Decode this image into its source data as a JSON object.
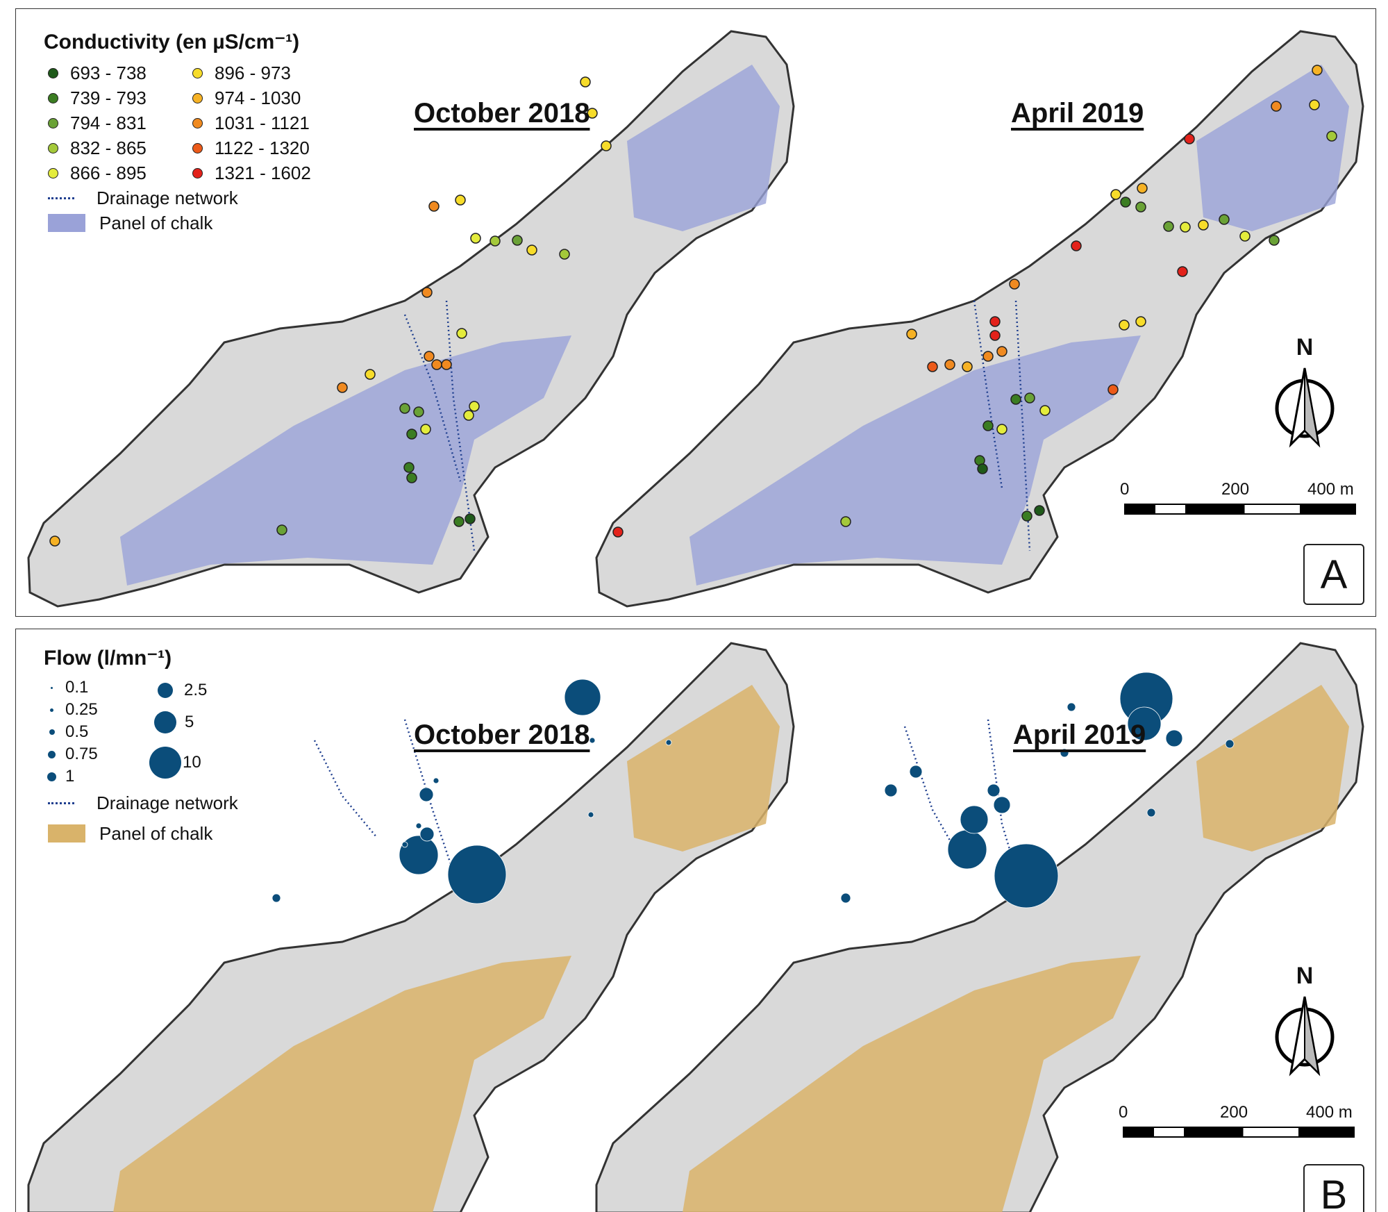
{
  "panel_a": {
    "legend_title": "Conductivity (en µS/cm⁻¹)",
    "classes": [
      {
        "label": "693 - 738",
        "color": "#1f5a1a"
      },
      {
        "label": "739 - 793",
        "color": "#3b7d22"
      },
      {
        "label": "794 - 831",
        "color": "#6aa236"
      },
      {
        "label": "832 - 865",
        "color": "#a4c93a"
      },
      {
        "label": "866 - 895",
        "color": "#e4ec3c"
      },
      {
        "label": "896 - 973",
        "color": "#f7dc2a"
      },
      {
        "label": "974 - 1030",
        "color": "#f6b225"
      },
      {
        "label": "1031 - 1121",
        "color": "#f08a20"
      },
      {
        "label": "1122 - 1320",
        "color": "#ec5a19"
      },
      {
        "label": "1321 - 1602",
        "color": "#e3221b"
      }
    ],
    "drainage_label": "Drainage network",
    "panel_label": "Panel of chalk",
    "panel_color": "#9aa2d8",
    "title_left": "October 2018",
    "title_right": "April 2019",
    "north": "N",
    "scale": {
      "s0": "0",
      "s1": "200",
      "s2": "400 m"
    },
    "letter": "A"
  },
  "panel_b": {
    "legend_title": "Flow (l/mn⁻¹)",
    "sizes_left": [
      "0.1",
      "0.25",
      "0.5",
      "0.75",
      "1"
    ],
    "sizes_right": [
      "2.5",
      "5",
      "10"
    ],
    "drainage_label": "Drainage network",
    "panel_label": "Panel of chalk",
    "panel_color": "#d9b36a",
    "bubble_color": "#0b4d7a",
    "title_left": "October 2018",
    "title_right": "April 2019",
    "north": "N",
    "scale": {
      "s0": "0",
      "s1": "200",
      "s2": "400 m"
    },
    "letter": "B"
  }
}
